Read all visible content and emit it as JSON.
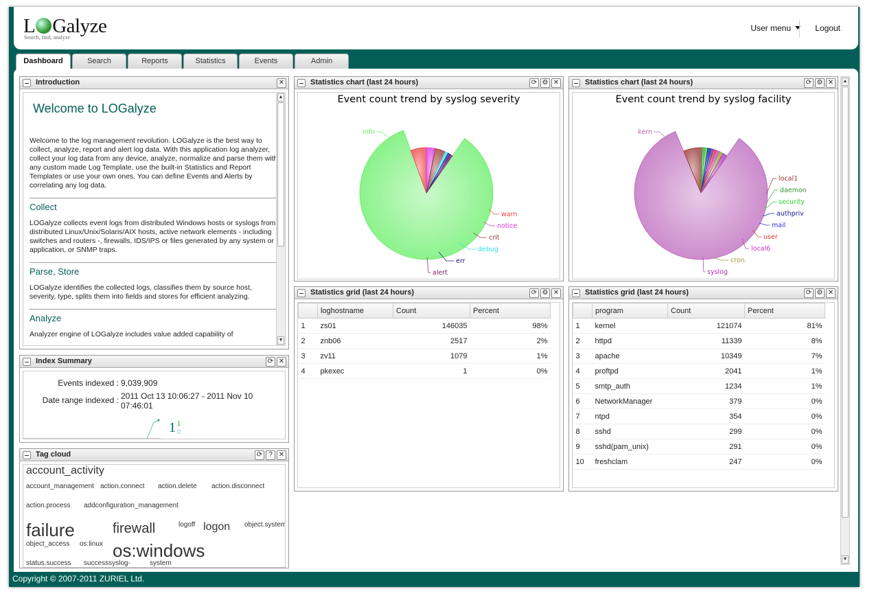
{
  "header": {
    "logo_prefix": "L",
    "logo_suffix": "Galyze",
    "tagline": "Search, find, analyze",
    "user_menu": "User menu",
    "logout": "Logout"
  },
  "tabs": [
    "Dashboard",
    "Search",
    "Reports",
    "Statistics",
    "Events",
    "Admin"
  ],
  "intro": {
    "title": "Introduction",
    "welcome": "Welcome to LOGalyze",
    "p1": "Welcome to the log management revolution. LOGalyze is the best way to collect, analyze, report and alert log data. With this application log analyzer, collect your log data from any device, analyze, normalize and parse them with any custom made Log Template, use the built-in Statistics and Report Templates or use your own ones. You can define Events and Alerts by correlating any log data.",
    "h_collect": "Collect",
    "p_collect": "LOGalyze collects event logs from distributed Windows hosts or syslogs from distributed Linux/Unix/Solaris/AIX hosts, active network elements - including switches and routers -, firewalls, IDS/IPS or files generated by any system or application, or SNMP traps.",
    "h_parse": "Parse, Store",
    "p_parse": "LOGalyze identifies the collected logs, classifies them by source host, severity, type, splits them into fields and stores for efficient analyzing.",
    "h_analyze": "Analyze",
    "p_analyze": "Analyzer engine of LOGalyze includes value added capability of"
  },
  "index_summary": {
    "title": "Index Summary",
    "events_label": "Events indexed :",
    "events_value": "9,039,909",
    "range_label": "Date range indexed :",
    "range_value_line1": "2011 Oct 13 10:06:27 - 2011 Nov 10",
    "range_value_line2": "07:46:01",
    "spark_big": "1",
    "spark_sup": "1",
    "spark_sub": "0"
  },
  "tag_cloud": {
    "title": "Tag cloud",
    "tags": [
      "account_activity",
      "account_management",
      "action.connect",
      "action.delete",
      "action.disconnect",
      "action.process",
      "addconfiguration_management",
      "failure",
      "firewall",
      "logoff",
      "logon",
      "object.system",
      "object_access",
      "os:linux",
      "os:windows",
      "status.success",
      "successsyslog-",
      "system"
    ]
  },
  "chart_severity": {
    "panel_title": "Statistics chart (last 24 hours)",
    "chart_data": {
      "type": "pie",
      "title": "Event count trend by syslog severity",
      "categories": [
        "info",
        "warn",
        "notice",
        "crit",
        "debug",
        "err",
        "alert"
      ],
      "values": [
        84,
        5.5,
        3.2,
        3.6,
        1.2,
        1.0,
        0.7
      ],
      "colors": [
        "#66ee66",
        "#ee4444",
        "#dd33dd",
        "#993333",
        "#33dddd",
        "#1a1a99",
        "#7a1a6a"
      ]
    }
  },
  "chart_facility": {
    "panel_title": "Statistics chart (last 24 hours)",
    "chart_data": {
      "type": "pie",
      "title": "Event count trend by syslog facility",
      "categories": [
        "kern",
        "local1",
        "daemon",
        "security",
        "authpriv",
        "mail",
        "user",
        "local6",
        "cron",
        "syslog"
      ],
      "values": [
        84,
        6.5,
        1.1,
        1.1,
        1.0,
        1.0,
        1.0,
        1.2,
        1.5,
        1.6
      ],
      "colors": [
        "#bb66bb",
        "#993333",
        "#339933",
        "#33cc33",
        "#1a1a99",
        "#3333cc",
        "#dd3333",
        "#cc33cc",
        "#999933",
        "#aa33aa"
      ]
    }
  },
  "grid_hosts": {
    "title": "Statistics grid (last 24 hours)",
    "columns": [
      "loghostname",
      "Count",
      "Percent"
    ],
    "rows": [
      [
        "1",
        "zs01",
        "146035",
        "98%"
      ],
      [
        "2",
        "znb06",
        "2517",
        "2%"
      ],
      [
        "3",
        "zv11",
        "1079",
        "1%"
      ],
      [
        "4",
        "pkexec",
        "1",
        "0%"
      ]
    ]
  },
  "grid_programs": {
    "title": "Statistics grid (last 24 hours)",
    "columns": [
      "program",
      "Count",
      "Percent"
    ],
    "rows": [
      [
        "1",
        "kernel",
        "121074",
        "81%"
      ],
      [
        "2",
        "httpd",
        "11339",
        "8%"
      ],
      [
        "3",
        "apache",
        "10349",
        "7%"
      ],
      [
        "4",
        "proftpd",
        "2041",
        "1%"
      ],
      [
        "5",
        "smtp_auth",
        "1234",
        "1%"
      ],
      [
        "6",
        "NetworkManager",
        "379",
        "0%"
      ],
      [
        "7",
        "ntpd",
        "354",
        "0%"
      ],
      [
        "8",
        "sshd",
        "299",
        "0%"
      ],
      [
        "9",
        "sshd(pam_unix)",
        "291",
        "0%"
      ],
      [
        "10",
        "freshclam",
        "247",
        "0%"
      ]
    ]
  },
  "footer": "Copyright © 2007-2011 ZURIEL Ltd.",
  "icons": {
    "refresh": "⟳",
    "gear": "⚙",
    "close": "✕",
    "help": "?"
  }
}
